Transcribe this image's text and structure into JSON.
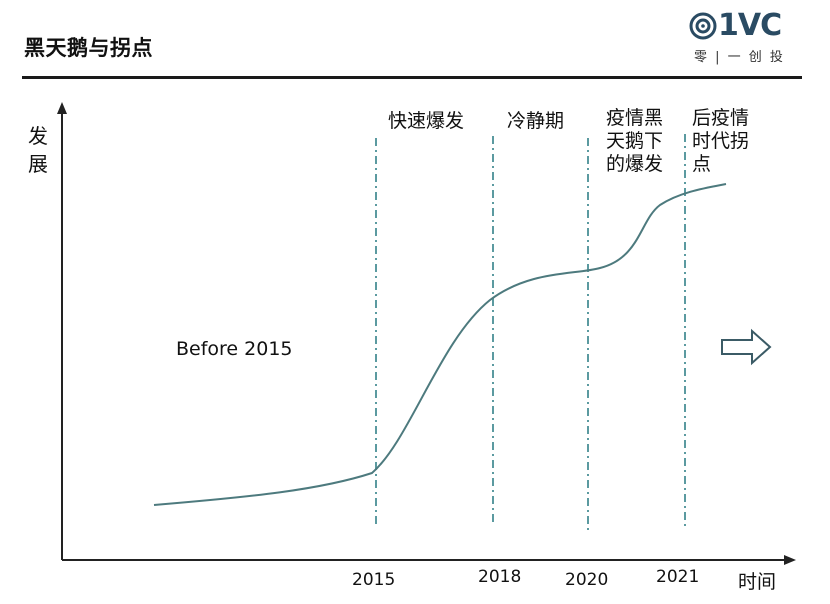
{
  "header": {
    "title": "黑天鹅与拐点",
    "logo_text": "01VC",
    "logo_subtitle": "零 | 一 创 投",
    "logo_color": "#2a4b63"
  },
  "axes": {
    "y_label": "发\n展",
    "x_label": "时间"
  },
  "phases": [
    "快速爆发",
    "冷静期",
    "疫情黑\n天鹅下\n的爆发",
    "后疫情\n时代拐\n点"
  ],
  "annotation": "Before 2015",
  "years": [
    "2015",
    "2018",
    "2020",
    "2021"
  ],
  "colors": {
    "curve": "#4d7a7e",
    "divider": "#5b9aa0",
    "axis": "#222222",
    "arrow": "#3b5b66"
  },
  "icons": {
    "right_arrow": "outline-right-arrow-icon"
  }
}
